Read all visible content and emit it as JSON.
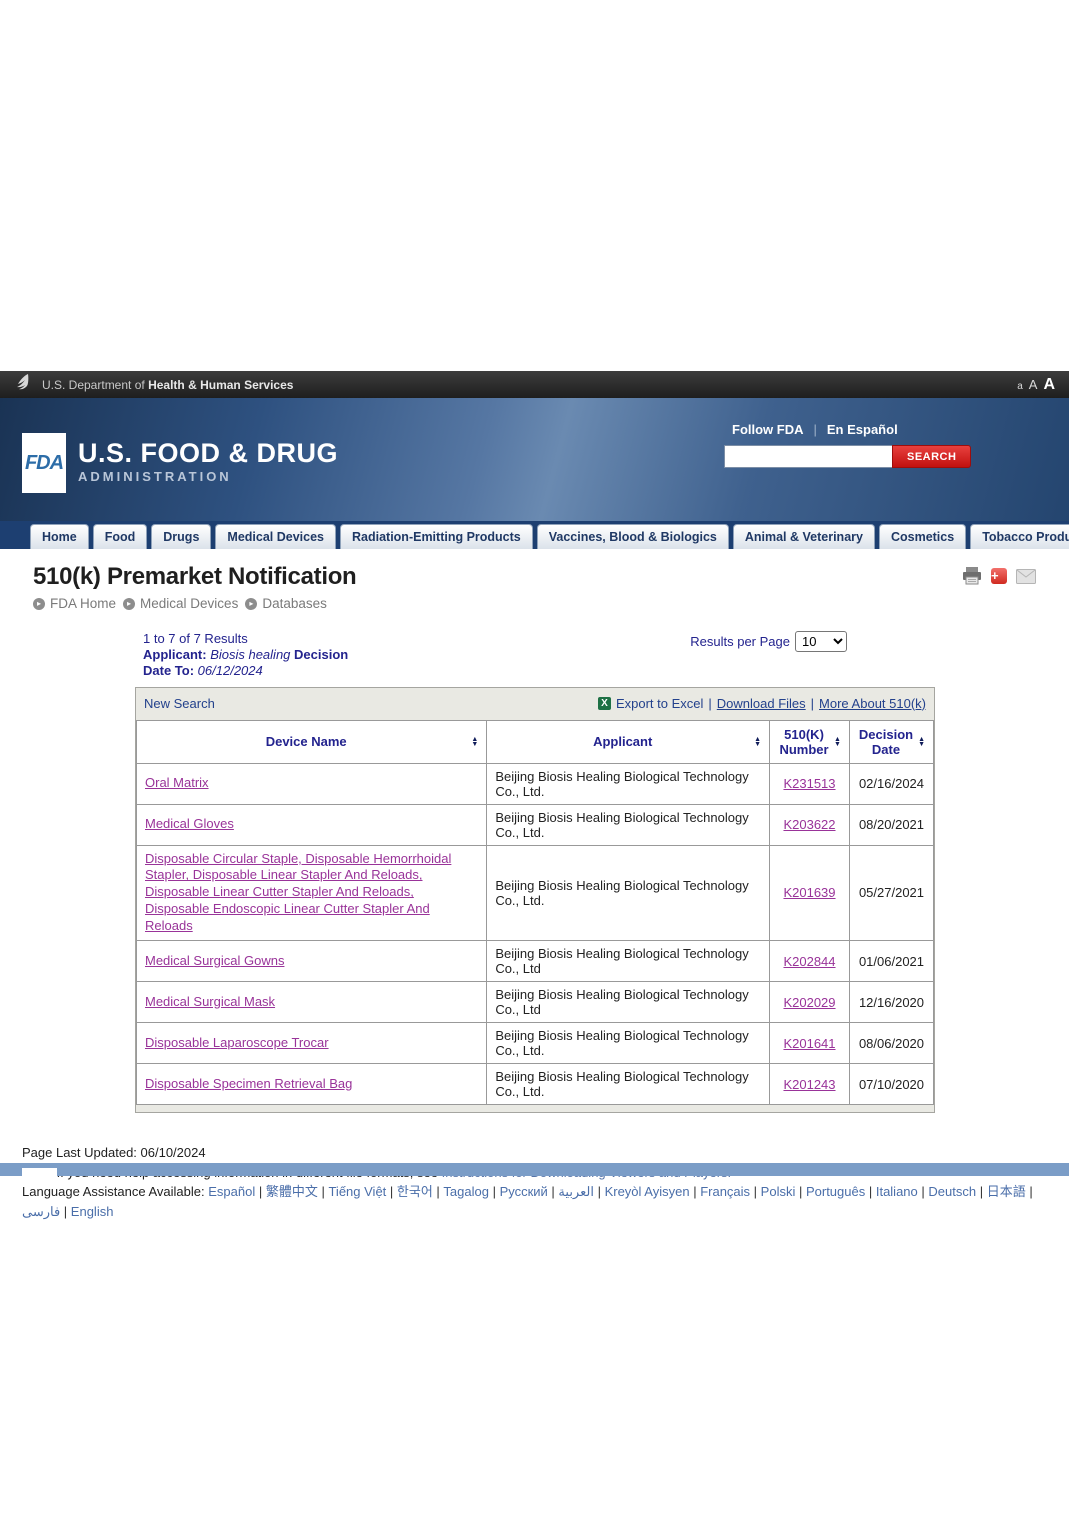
{
  "colors": {
    "results-text": "#23238e",
    "link-purple": "#993399",
    "search-red": "#c2110f",
    "bottom-bar-blue": "#7b9dc7"
  },
  "top_bar": {
    "dept_prefix": "U.S. Department of",
    "dept_bold": "Health & Human Services",
    "font_sizes": [
      "a",
      "A",
      "A"
    ]
  },
  "header": {
    "logo_acronym": "FDA",
    "brand_line1": "U.S. FOOD & DRUG",
    "brand_line2": "ADMINISTRATION",
    "follow_fda": "Follow FDA",
    "en_espanol": "En Español",
    "search_placeholder": "",
    "search_button": "SEARCH"
  },
  "nav": {
    "tabs": [
      "Home",
      "Food",
      "Drugs",
      "Medical Devices",
      "Radiation-Emitting Products",
      "Vaccines, Blood & Biologics",
      "Animal & Veterinary",
      "Cosmetics",
      "Tobacco Products"
    ]
  },
  "page": {
    "title": "510(k) Premarket Notification",
    "breadcrumbs": [
      "FDA Home",
      "Medical Devices",
      "Databases"
    ]
  },
  "results": {
    "count_line": "1 to 7 of 7 Results",
    "applicant_label": "Applicant:",
    "applicant_value": "Biosis healing",
    "decision_label": "Decision",
    "date_to_label": "Date To:",
    "date_to_value": "06/12/2024",
    "per_page_label": "Results per Page",
    "per_page_value": "10"
  },
  "toolbar": {
    "new_search": "New Search",
    "export_to_excel": "Export to Excel",
    "download_files": "Download Files",
    "more_about": "More About 510(k)"
  },
  "table": {
    "headers": [
      "Device Name",
      "Applicant",
      "510(K) Number",
      "Decision Date"
    ],
    "rows": [
      {
        "device": "Oral Matrix",
        "applicant": "Beijing Biosis Healing Biological Technology Co., Ltd.",
        "k_number": "K231513",
        "decision_date": "02/16/2024"
      },
      {
        "device": "Medical Gloves",
        "applicant": "Beijing Biosis Healing Biological Technology Co., Ltd.",
        "k_number": "K203622",
        "decision_date": "08/20/2021"
      },
      {
        "device": "Disposable Circular Staple, Disposable Hemorrhoidal Stapler, Disposable Linear Stapler And Reloads, Disposable Linear Cutter Stapler And Reloads, Disposable Endoscopic Linear Cutter Stapler And Reloads",
        "applicant": "Beijing Biosis Healing Biological Technology Co., Ltd.",
        "k_number": "K201639",
        "decision_date": "05/27/2021"
      },
      {
        "device": "Medical Surgical Gowns",
        "applicant": "Beijing Biosis Healing Biological Technology Co., Ltd",
        "k_number": "K202844",
        "decision_date": "01/06/2021"
      },
      {
        "device": "Medical Surgical Mask",
        "applicant": "Beijing Biosis Healing Biological Technology Co., Ltd",
        "k_number": "K202029",
        "decision_date": "12/16/2020"
      },
      {
        "device": "Disposable Laparoscope Trocar",
        "applicant": "Beijing Biosis Healing Biological Technology Co., Ltd.",
        "k_number": "K201641",
        "decision_date": "08/06/2020"
      },
      {
        "device": "Disposable Specimen Retrieval Bag",
        "applicant": "Beijing Biosis Healing Biological Technology Co., Ltd.",
        "k_number": "K201243",
        "decision_date": "07/10/2020"
      }
    ]
  },
  "footer": {
    "last_updated": "Page Last Updated: 06/10/2024",
    "note_prefix": "Note: If you need help accessing information in different file formats, see",
    "note_link": "Instructions for Downloading Viewers and Players.",
    "language_label": "Language Assistance Available:",
    "languages": [
      "Español",
      "繁體中文",
      "Tiếng Việt",
      "한국어",
      "Tagalog",
      "Русский",
      "العربية",
      "Kreyòl Ayisyen",
      "Français",
      "Polski",
      "Português",
      "Italiano",
      "Deutsch",
      "日本語",
      "فارسی",
      "English"
    ]
  }
}
